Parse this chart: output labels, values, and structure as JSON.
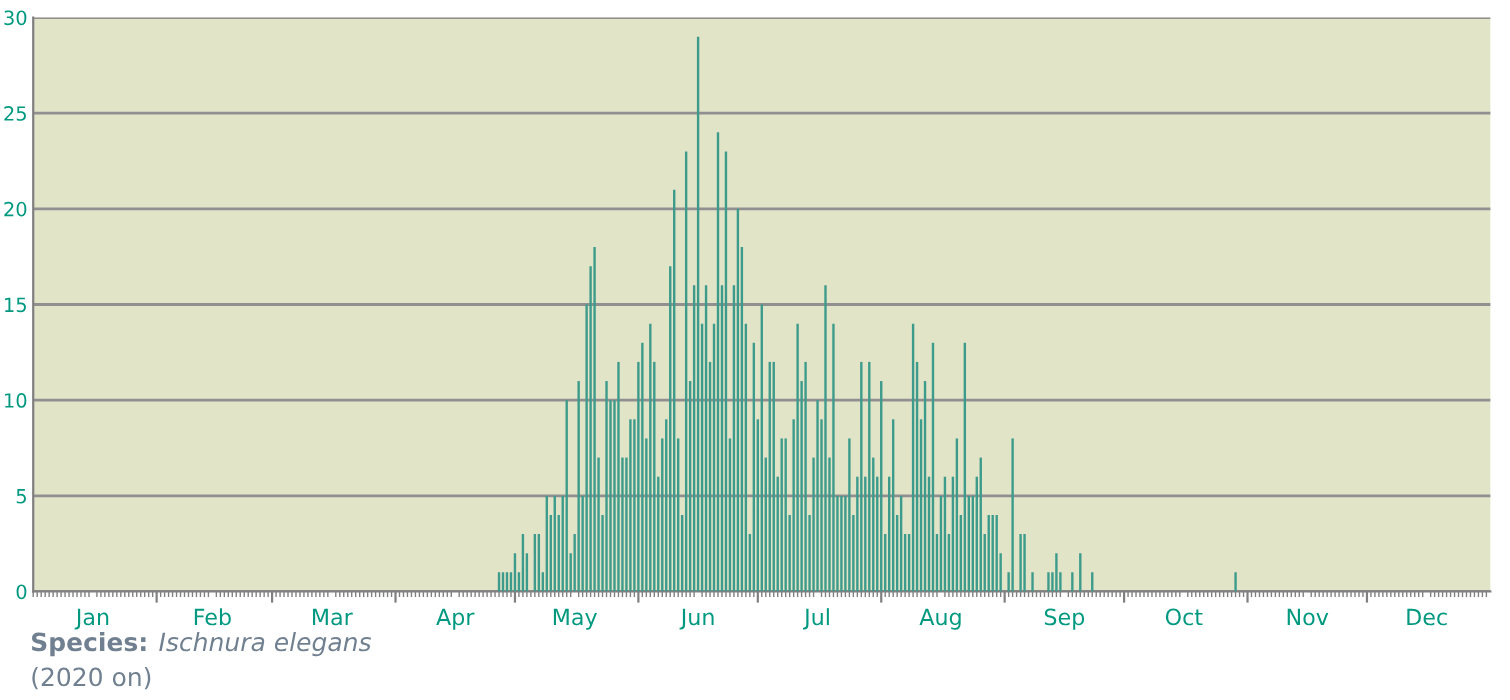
{
  "chart_data": {
    "type": "bar",
    "x": [
      "2020-04-27",
      "2020-04-28",
      "2020-04-29",
      "2020-04-30",
      "2020-05-01",
      "2020-05-02",
      "2020-05-03",
      "2020-05-04",
      "2020-05-05",
      "2020-05-06",
      "2020-05-07",
      "2020-05-08",
      "2020-05-09",
      "2020-05-10",
      "2020-05-11",
      "2020-05-12",
      "2020-05-13",
      "2020-05-14",
      "2020-05-15",
      "2020-05-16",
      "2020-05-17",
      "2020-05-18",
      "2020-05-19",
      "2020-05-20",
      "2020-05-21",
      "2020-05-22",
      "2020-05-23",
      "2020-05-24",
      "2020-05-25",
      "2020-05-26",
      "2020-05-27",
      "2020-05-28",
      "2020-05-29",
      "2020-05-30",
      "2020-05-31",
      "2020-06-01",
      "2020-06-02",
      "2020-06-03",
      "2020-06-04",
      "2020-06-05",
      "2020-06-06",
      "2020-06-07",
      "2020-06-08",
      "2020-06-09",
      "2020-06-10",
      "2020-06-11",
      "2020-06-12",
      "2020-06-13",
      "2020-06-14",
      "2020-06-15",
      "2020-06-16",
      "2020-06-17",
      "2020-06-18",
      "2020-06-19",
      "2020-06-20",
      "2020-06-21",
      "2020-06-22",
      "2020-06-23",
      "2020-06-24",
      "2020-06-25",
      "2020-06-26",
      "2020-06-27",
      "2020-06-28",
      "2020-06-29",
      "2020-06-30",
      "2020-07-01",
      "2020-07-02",
      "2020-07-03",
      "2020-07-04",
      "2020-07-05",
      "2020-07-06",
      "2020-07-07",
      "2020-07-08",
      "2020-07-09",
      "2020-07-10",
      "2020-07-11",
      "2020-07-12",
      "2020-07-13",
      "2020-07-14",
      "2020-07-15",
      "2020-07-16",
      "2020-07-17",
      "2020-07-18",
      "2020-07-19",
      "2020-07-20",
      "2020-07-21",
      "2020-07-22",
      "2020-07-23",
      "2020-07-24",
      "2020-07-25",
      "2020-07-26",
      "2020-07-27",
      "2020-07-28",
      "2020-07-29",
      "2020-07-30",
      "2020-07-31",
      "2020-08-01",
      "2020-08-02",
      "2020-08-03",
      "2020-08-04",
      "2020-08-05",
      "2020-08-06",
      "2020-08-07",
      "2020-08-08",
      "2020-08-09",
      "2020-08-10",
      "2020-08-11",
      "2020-08-12",
      "2020-08-13",
      "2020-08-14",
      "2020-08-15",
      "2020-08-16",
      "2020-08-17",
      "2020-08-18",
      "2020-08-19",
      "2020-08-20",
      "2020-08-21",
      "2020-08-22",
      "2020-08-23",
      "2020-08-24",
      "2020-08-25",
      "2020-08-26",
      "2020-08-27",
      "2020-08-28",
      "2020-08-29",
      "2020-08-30",
      "2020-08-31",
      "2020-09-01",
      "2020-09-02",
      "2020-09-03",
      "2020-09-04",
      "2020-09-05",
      "2020-09-06",
      "2020-09-07",
      "2020-09-08",
      "2020-09-09",
      "2020-09-10",
      "2020-09-11",
      "2020-09-12",
      "2020-09-13",
      "2020-09-14",
      "2020-09-15",
      "2020-09-16",
      "2020-09-17",
      "2020-09-18",
      "2020-09-19",
      "2020-09-20",
      "2020-09-21",
      "2020-09-22",
      "2020-09-23",
      "2020-10-29"
    ],
    "values": [
      1,
      1,
      1,
      1,
      2,
      1,
      3,
      2,
      0,
      3,
      3,
      1,
      5,
      4,
      5,
      4,
      5,
      10,
      2,
      3,
      11,
      5,
      15,
      17,
      18,
      7,
      4,
      11,
      10,
      10,
      12,
      7,
      7,
      9,
      9,
      12,
      13,
      8,
      14,
      12,
      6,
      8,
      9,
      17,
      21,
      8,
      4,
      23,
      11,
      16,
      29,
      14,
      16,
      12,
      14,
      24,
      16,
      23,
      8,
      16,
      20,
      18,
      14,
      3,
      13,
      9,
      15,
      7,
      12,
      12,
      6,
      8,
      8,
      4,
      9,
      14,
      11,
      12,
      4,
      7,
      10,
      9,
      16,
      7,
      14,
      5,
      5,
      5,
      8,
      4,
      6,
      12,
      6,
      12,
      7,
      6,
      11,
      3,
      6,
      9,
      4,
      5,
      3,
      3,
      14,
      12,
      9,
      11,
      6,
      13,
      3,
      5,
      6,
      3,
      6,
      8,
      4,
      13,
      5,
      5,
      6,
      7,
      3,
      4,
      4,
      4,
      2,
      0,
      1,
      8,
      0,
      3,
      3,
      0,
      1,
      0,
      0,
      0,
      1,
      1,
      2,
      1,
      0,
      0,
      1,
      0,
      2,
      0,
      0,
      1,
      1
    ],
    "color": "#3d9b8c",
    "xlim": [
      "2020-01-01",
      "2021-01-01"
    ],
    "xticks": [
      {
        "value": "2020-01-16",
        "label": "Jan"
      },
      {
        "value": "2020-02-01",
        "label": null
      },
      {
        "value": "2020-02-15",
        "label": "Feb"
      },
      {
        "value": "2020-03-01",
        "label": null
      },
      {
        "value": "2020-03-16",
        "label": "Mar"
      },
      {
        "value": "2020-04-01",
        "label": null
      },
      {
        "value": "2020-04-16",
        "label": "Apr"
      },
      {
        "value": "2020-05-01",
        "label": null
      },
      {
        "value": "2020-05-16",
        "label": "May"
      },
      {
        "value": "2020-06-01",
        "label": null
      },
      {
        "value": "2020-06-16",
        "label": "Jun"
      },
      {
        "value": "2020-07-01",
        "label": null
      },
      {
        "value": "2020-07-16",
        "label": "Jul"
      },
      {
        "value": "2020-08-01",
        "label": null
      },
      {
        "value": "2020-08-16",
        "label": "Aug"
      },
      {
        "value": "2020-09-01",
        "label": null
      },
      {
        "value": "2020-09-16",
        "label": "Sep"
      },
      {
        "value": "2020-10-01",
        "label": null
      },
      {
        "value": "2020-10-16",
        "label": "Oct"
      },
      {
        "value": "2020-11-01",
        "label": null
      },
      {
        "value": "2020-11-16",
        "label": "Nov"
      },
      {
        "value": "2020-12-01",
        "label": null
      },
      {
        "value": "2020-12-16",
        "label": "Dec"
      }
    ],
    "ylim": [
      0,
      30
    ],
    "yticks": [
      0,
      5,
      10,
      15,
      20,
      25,
      30
    ],
    "grid": "y",
    "annotations": [
      "Species:",
      "Ischnura elegans",
      "(2020 on)"
    ]
  }
}
